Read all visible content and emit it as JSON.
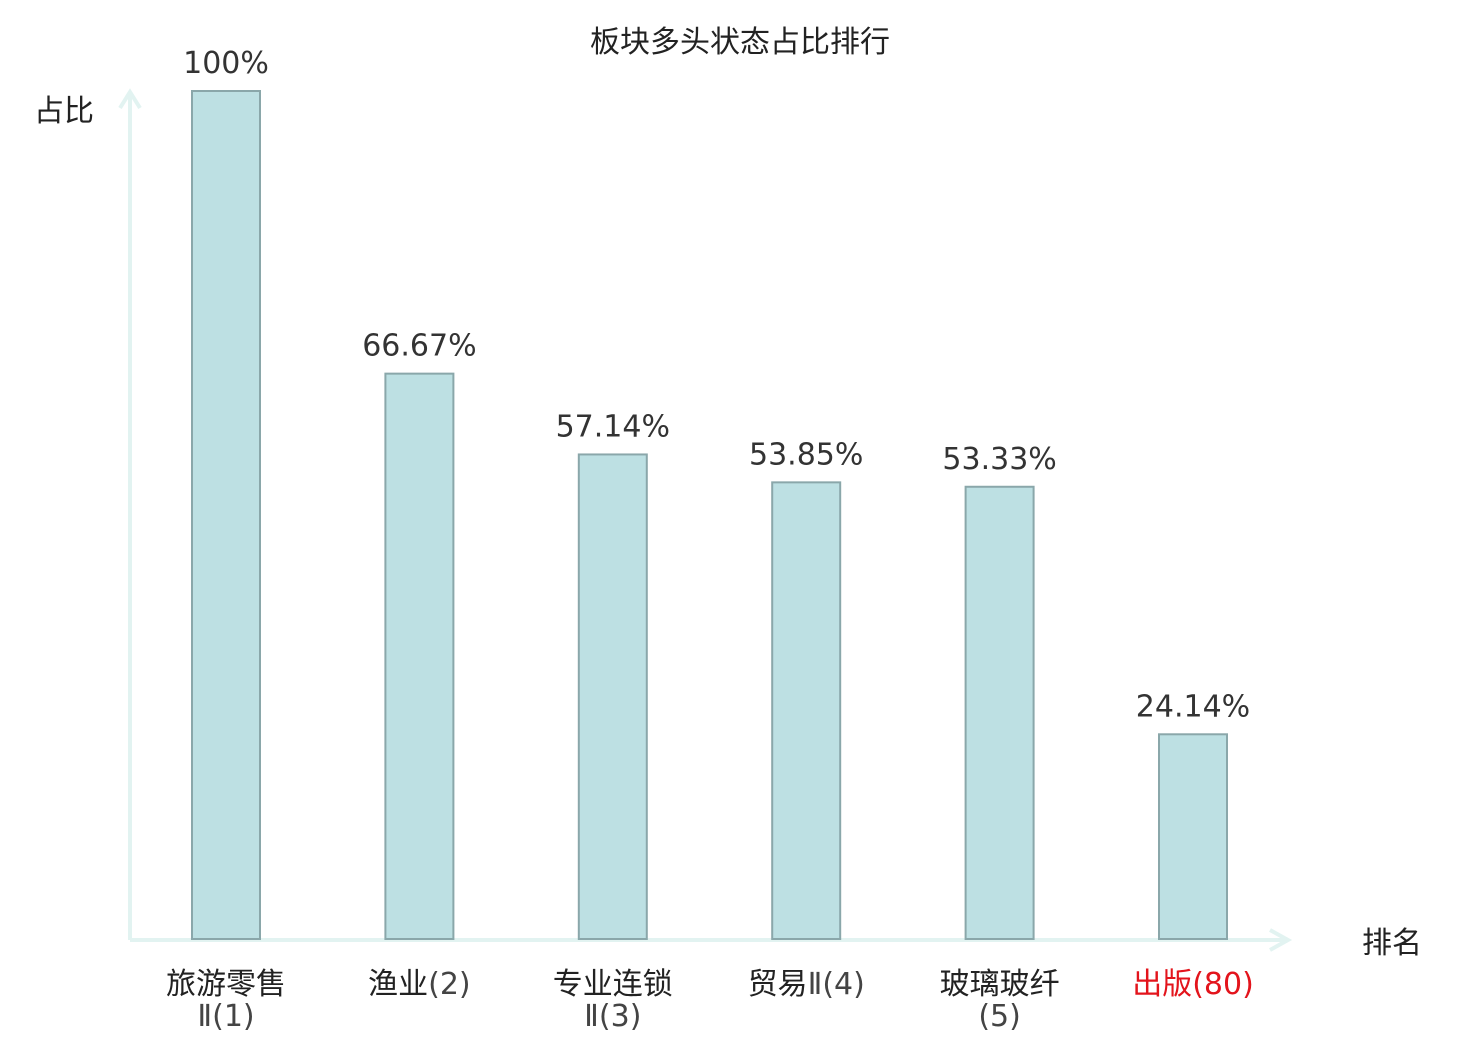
{
  "chart_data": {
    "type": "bar",
    "title": "板块多头状态占比排行",
    "ylabel": "占比",
    "xlabel": "排名",
    "ylim": [
      0,
      100
    ],
    "grid": false,
    "legend": "none",
    "categories": [
      {
        "name": "旅游零售",
        "rank": "Ⅱ(1)",
        "highlight": false
      },
      {
        "name": "渔业",
        "rank": "(2)",
        "highlight": false
      },
      {
        "name": "专业连锁",
        "rank": "Ⅱ(3)",
        "highlight": false
      },
      {
        "name": "贸易",
        "rank": "Ⅱ(4)",
        "highlight": false
      },
      {
        "name": "玻璃玻纤",
        "rank": "(5)",
        "highlight": false
      },
      {
        "name": "出版",
        "rank": "(80)",
        "highlight": true
      }
    ],
    "values": [
      100,
      66.67,
      57.14,
      53.85,
      53.33,
      24.14
    ],
    "value_labels": [
      "100%",
      "66.67%",
      "57.14%",
      "53.85%",
      "53.33%",
      "24.14%"
    ],
    "colors": {
      "bar_fill": "#bde0e3",
      "bar_stroke": "#8aa7aa",
      "axis": "#e2f3f1",
      "text": "#222222",
      "rank_text": "#444444",
      "highlight": "#e3141c"
    }
  }
}
